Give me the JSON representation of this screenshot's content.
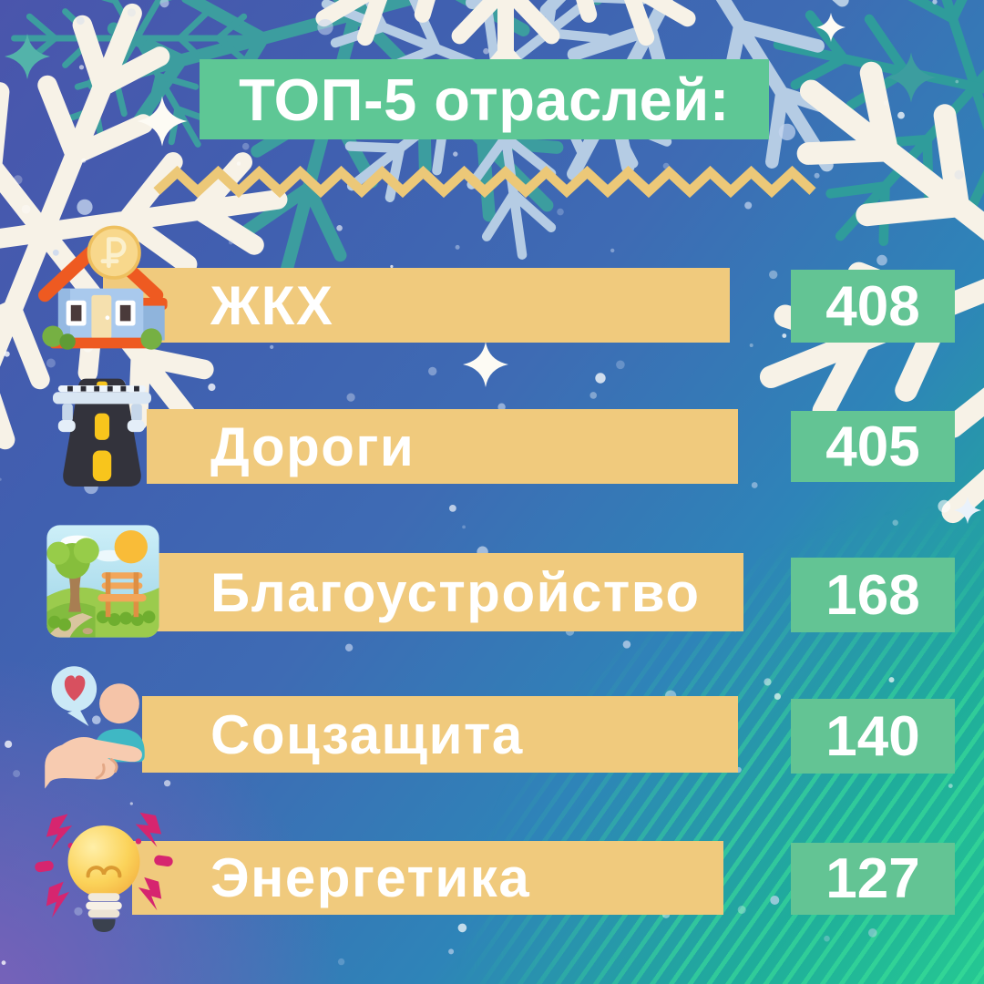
{
  "header": {
    "title": "ТОП-5 отраслей:"
  },
  "rows": [
    {
      "icon": "house-ruble-icon",
      "label": "ЖКХ",
      "value": "408"
    },
    {
      "icon": "road-icon",
      "label": "Дороги",
      "value": "405"
    },
    {
      "icon": "park-icon",
      "label": "Благоустройство",
      "value": "168"
    },
    {
      "icon": "care-hand-icon",
      "label": "Соцзащита",
      "value": "140"
    },
    {
      "icon": "lightbulb-icon",
      "label": "Энергетика",
      "value": "127"
    }
  ],
  "colors": {
    "title_box": "#5EC795",
    "bar": "#F0CA7D",
    "value_box": "#63C494",
    "zigzag": "#ECC878",
    "text": "#FFFFFF",
    "background_top": "#4A55AC",
    "background_blue": "#3E6BB4",
    "background_purple": "#7E60BA",
    "background_green": "#25C892"
  },
  "decorations": [
    "snowflake-icon",
    "sparkle-icon",
    "snow-dots",
    "zigzag-divider",
    "diagonal-stripes"
  ],
  "chart_data": {
    "type": "bar",
    "title": "ТОП-5 отраслей:",
    "categories": [
      "ЖКХ",
      "Дороги",
      "Благоустройство",
      "Соцзащита",
      "Энергетика"
    ],
    "values": [
      408,
      405,
      168,
      140,
      127
    ],
    "orientation": "horizontal",
    "value_labels_shown": true,
    "axes_shown": false,
    "legend": false,
    "note": "decorative ranked list; bar lengths are not proportional to values"
  }
}
